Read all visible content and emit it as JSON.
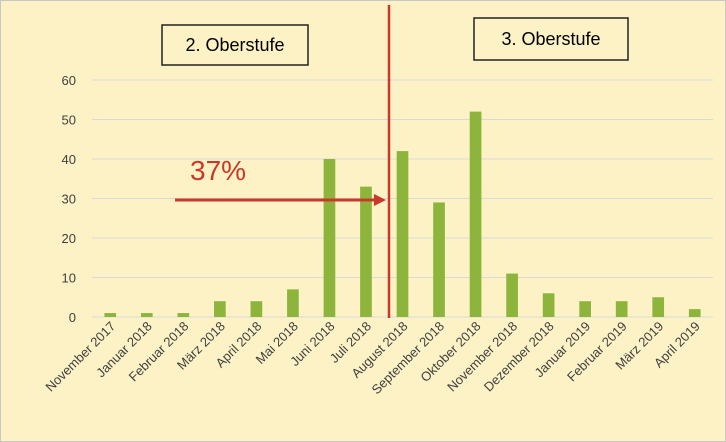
{
  "chart_data": {
    "type": "bar",
    "categories": [
      "November 2017",
      "Januar 2018",
      "Februar 2018",
      "März 2018",
      "April 2018",
      "Mai 2018",
      "Juni 2018",
      "Juli 2018",
      "August 2018",
      "September 2018",
      "Oktober 2018",
      "November 2018",
      "Dezember 2018",
      "Januar 2019",
      "Februar 2019",
      "März 2019",
      "April 2019"
    ],
    "values": [
      1,
      1,
      1,
      4,
      4,
      7,
      40,
      33,
      42,
      29,
      52,
      11,
      6,
      4,
      4,
      5,
      2
    ],
    "color": "#8db53c",
    "ylim": [
      0,
      60
    ],
    "yticks": [
      0,
      10,
      20,
      30,
      40,
      50,
      60
    ],
    "grid": true,
    "annotations": [
      "2. Oberstufe",
      "3. Oberstufe",
      "37%"
    ]
  }
}
